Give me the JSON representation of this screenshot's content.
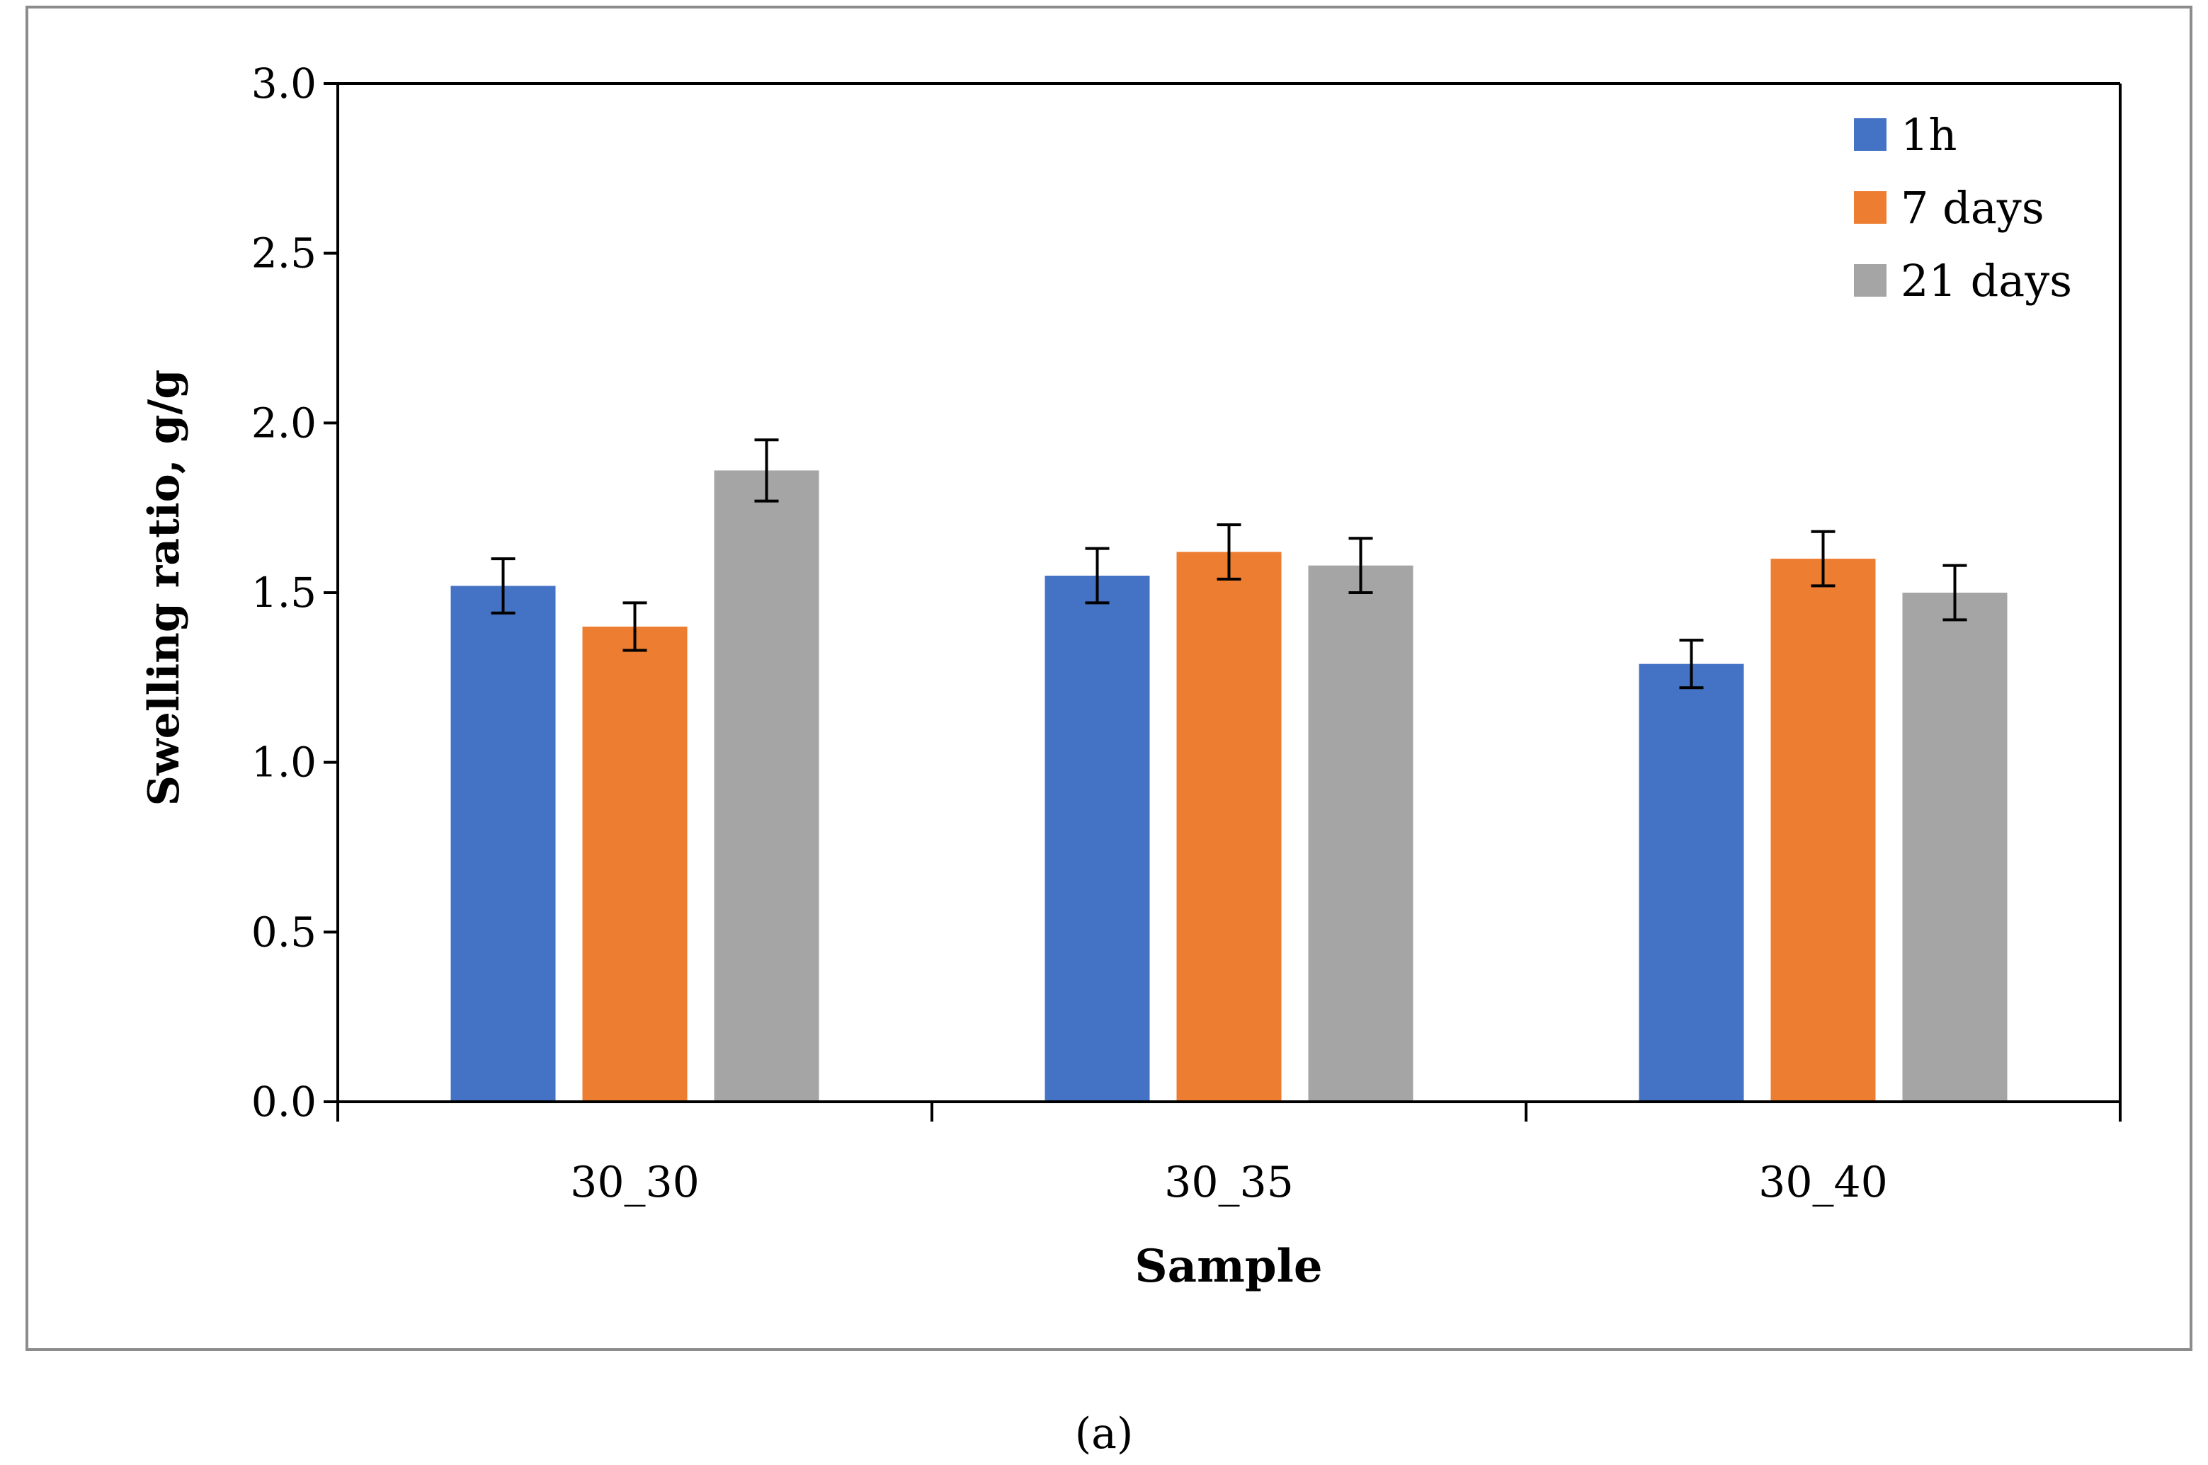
{
  "chart_data": {
    "type": "bar",
    "xlabel": "Sample",
    "ylabel": "Swelling ratio, g/g",
    "ylim": [
      0,
      3.0
    ],
    "yticks": [
      "0.0",
      "0.5",
      "1.0",
      "1.5",
      "2.0",
      "2.5",
      "3.0"
    ],
    "categories": [
      "30_30",
      "30_35",
      "30_40"
    ],
    "series": [
      {
        "name": "1h",
        "color": "#4472C4",
        "values": [
          1.52,
          1.55,
          1.29
        ],
        "errors": [
          0.08,
          0.08,
          0.07
        ]
      },
      {
        "name": "7 days",
        "color": "#ED7D31",
        "values": [
          1.4,
          1.62,
          1.6
        ],
        "errors": [
          0.07,
          0.08,
          0.08
        ]
      },
      {
        "name": "21 days",
        "color": "#A5A5A5",
        "values": [
          1.86,
          1.58,
          1.5
        ],
        "errors": [
          0.09,
          0.08,
          0.08
        ]
      }
    ],
    "legend": "top-right",
    "grid": false
  },
  "caption": "(a)"
}
